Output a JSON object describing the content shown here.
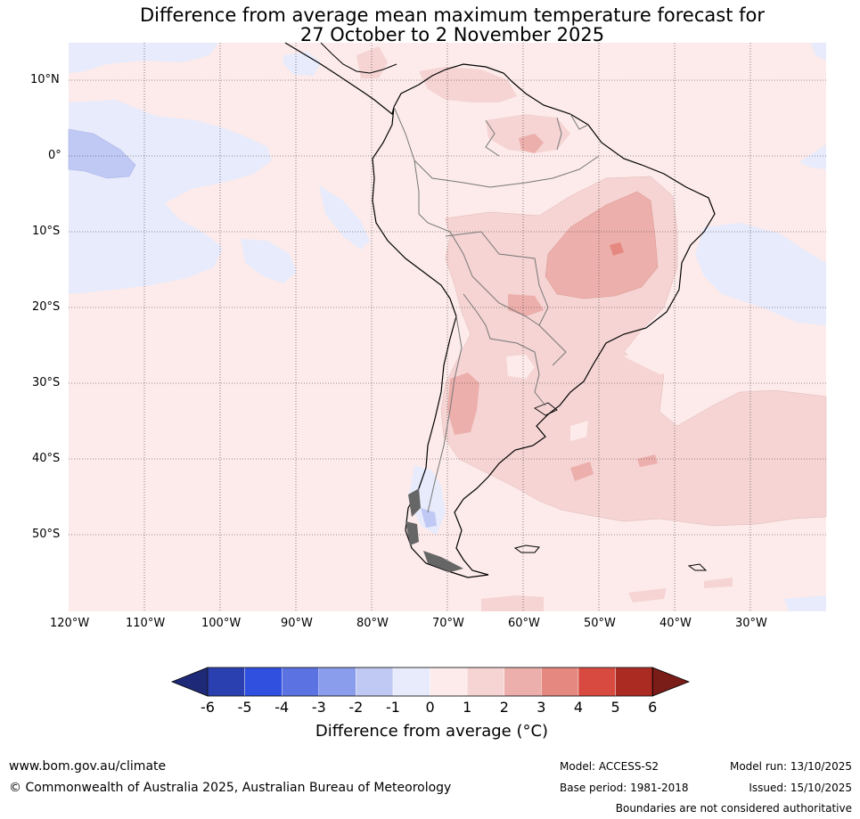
{
  "title": {
    "line1": "Difference from average mean maximum temperature forecast for",
    "line2": "27 October to 2 November 2025"
  },
  "map": {
    "lat_labels": [
      "10°N",
      "0°",
      "10°S",
      "20°S",
      "30°S",
      "40°S",
      "50°S"
    ],
    "lon_labels": [
      "120°W",
      "110°W",
      "100°W",
      "90°W",
      "80°W",
      "70°W",
      "60°W",
      "50°W",
      "40°W",
      "30°W"
    ]
  },
  "colorbar": {
    "ticks": [
      "-6",
      "-5",
      "-4",
      "-3",
      "-2",
      "-1",
      "0",
      "1",
      "2",
      "3",
      "4",
      "5",
      "6"
    ],
    "colors": [
      "#1e2a78",
      "#2a3fb0",
      "#3050e0",
      "#5a72e2",
      "#8a9cec",
      "#c0c8f4",
      "#e8ebfb",
      "#fcebea",
      "#f5d4d3",
      "#ecafab",
      "#e58880",
      "#d84a40",
      "#ab2b22",
      "#7a1c18"
    ],
    "label": "Difference from average (°C)"
  },
  "footer": {
    "website": "www.bom.gov.au/climate",
    "copyright": "© Commonwealth of Australia 2025, Australian Bureau of Meteorology",
    "model": "Model: ACCESS-S2",
    "base_period": "Base period: 1981-2018",
    "model_run": "Model run: 13/10/2025",
    "issued": "Issued: 15/10/2025",
    "disclaimer": "Boundaries are not considered authoritative"
  }
}
